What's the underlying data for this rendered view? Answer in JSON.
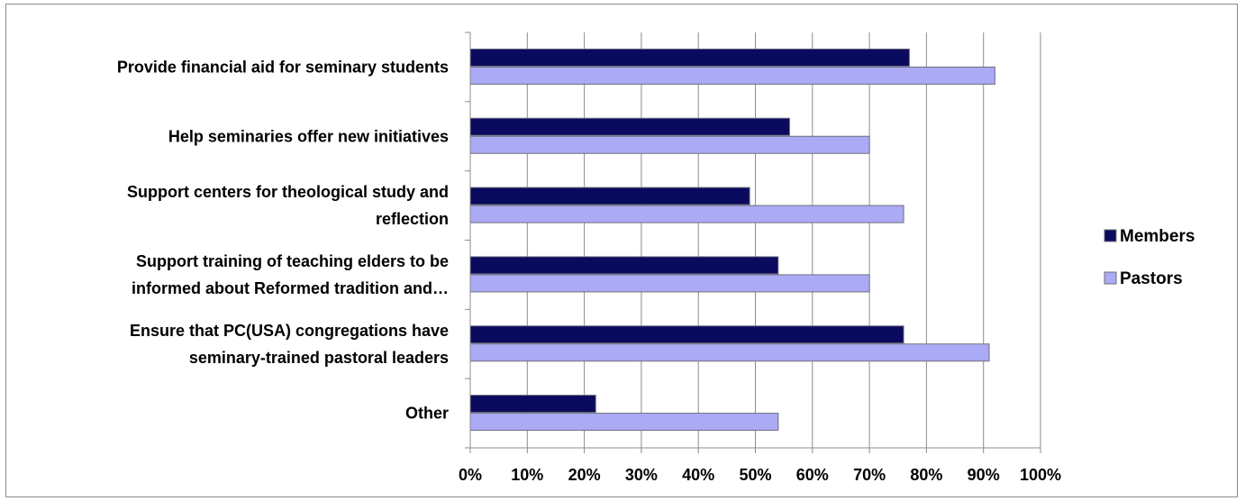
{
  "chart_data": {
    "type": "bar",
    "orientation": "horizontal",
    "categories": [
      [
        "Provide financial aid for seminary students"
      ],
      [
        "Help seminaries offer new initiatives"
      ],
      [
        "Support centers for theological study and",
        "reflection"
      ],
      [
        "Support training of teaching elders to be",
        "informed about Reformed tradition and…"
      ],
      [
        "Ensure that PC(USA) congregations have",
        "seminary-trained pastoral leaders"
      ],
      [
        "Other"
      ]
    ],
    "series": [
      {
        "name": "Members",
        "values": [
          77,
          56,
          49,
          54,
          76,
          22
        ],
        "color": "#0a0a5e"
      },
      {
        "name": "Pastors",
        "values": [
          92,
          70,
          76,
          70,
          91,
          54
        ],
        "color": "#aaaaf5"
      }
    ],
    "x_ticks": [
      "0%",
      "10%",
      "20%",
      "30%",
      "40%",
      "50%",
      "60%",
      "70%",
      "80%",
      "90%",
      "100%"
    ],
    "xlim": [
      0,
      100
    ],
    "grid": true,
    "legend_position": "right",
    "title": "",
    "xlabel": "",
    "ylabel": ""
  }
}
